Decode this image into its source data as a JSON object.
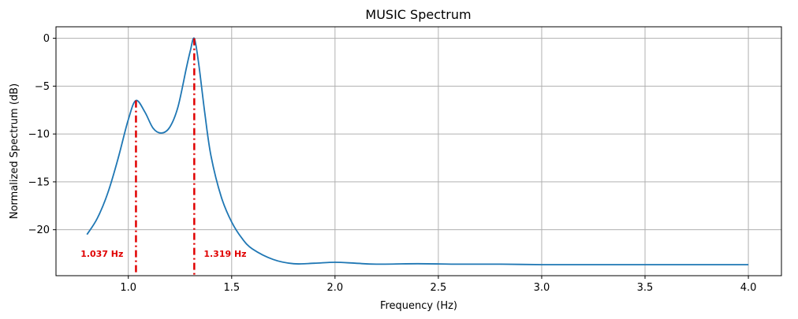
{
  "chart_data": {
    "type": "line",
    "title": "MUSIC Spectrum",
    "xlabel": "Frequency (Hz)",
    "ylabel": "Normalized Spectrum (dB)",
    "xlim": [
      0.65,
      4.16
    ],
    "ylim": [
      -24.8,
      1.2
    ],
    "x_ticks": [
      1.0,
      1.5,
      2.0,
      2.5,
      3.0,
      3.5,
      4.0
    ],
    "x_tick_labels": [
      "1.0",
      "1.5",
      "2.0",
      "2.5",
      "3.0",
      "3.5",
      "4.0"
    ],
    "y_ticks": [
      0,
      -5,
      -10,
      -15,
      -20
    ],
    "y_tick_labels": [
      "0",
      "−5",
      "−10",
      "−15",
      "−20"
    ],
    "grid": true,
    "series": [
      {
        "color": "#1f77b4",
        "x": [
          0.8,
          0.85,
          0.9,
          0.95,
          1.0,
          1.037,
          1.08,
          1.12,
          1.16,
          1.2,
          1.24,
          1.28,
          1.3,
          1.319,
          1.34,
          1.37,
          1.4,
          1.45,
          1.5,
          1.55,
          1.6,
          1.7,
          1.8,
          1.9,
          2.0,
          2.1,
          2.2,
          2.4,
          2.6,
          2.8,
          3.0,
          3.2,
          3.4,
          3.6,
          3.8,
          4.0
        ],
        "y": [
          -20.5,
          -18.8,
          -16.2,
          -12.6,
          -8.5,
          -6.5,
          -7.7,
          -9.4,
          -9.9,
          -9.3,
          -7.2,
          -3.2,
          -1.3,
          0.0,
          -2.6,
          -7.8,
          -12.3,
          -16.6,
          -19.2,
          -20.9,
          -22.0,
          -23.1,
          -23.55,
          -23.5,
          -23.4,
          -23.5,
          -23.6,
          -23.55,
          -23.6,
          -23.6,
          -23.65,
          -23.65,
          -23.65,
          -23.65,
          -23.65,
          -23.65
        ]
      }
    ],
    "peaks": [
      {
        "x": 1.037,
        "y": -6.5,
        "label": "1.037 Hz"
      },
      {
        "x": 1.319,
        "y": 0.0,
        "label": "1.319 Hz"
      }
    ],
    "peak_color": "#e00000",
    "peak_label_y": -22.5
  }
}
